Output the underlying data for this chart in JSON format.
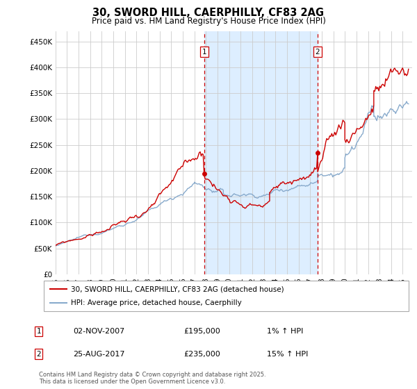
{
  "title": "30, SWORD HILL, CAERPHILLY, CF83 2AG",
  "subtitle": "Price paid vs. HM Land Registry's House Price Index (HPI)",
  "ylabel_ticks": [
    "£0",
    "£50K",
    "£100K",
    "£150K",
    "£200K",
    "£250K",
    "£300K",
    "£350K",
    "£400K",
    "£450K"
  ],
  "ylim": [
    0,
    470000
  ],
  "xlim_start": 1995.0,
  "xlim_end": 2025.8,
  "sale1_date": 2007.84,
  "sale1_price": 195000,
  "sale2_date": 2017.65,
  "sale2_price": 235000,
  "shade_start": 2007.84,
  "shade_end": 2017.65,
  "shade_color": "#ddeeff",
  "vline_color": "#cc0000",
  "hpi_color": "#88aacc",
  "price_line_color": "#cc0000",
  "marker_color": "#cc0000",
  "bg_color": "#ffffff",
  "grid_color": "#cccccc",
  "legend1_label": "30, SWORD HILL, CAERPHILLY, CF83 2AG (detached house)",
  "legend2_label": "HPI: Average price, detached house, Caerphilly",
  "annotation1_label": "1",
  "annotation1_date": "02-NOV-2007",
  "annotation1_price": "£195,000",
  "annotation1_hpi": "1% ↑ HPI",
  "annotation2_label": "2",
  "annotation2_date": "25-AUG-2017",
  "annotation2_price": "£235,000",
  "annotation2_hpi": "15% ↑ HPI",
  "footer": "Contains HM Land Registry data © Crown copyright and database right 2025.\nThis data is licensed under the Open Government Licence v3.0.",
  "title_fontsize": 10.5,
  "subtitle_fontsize": 8.5,
  "tick_fontsize": 7.5,
  "legend_fontsize": 7.5,
  "annotation_fontsize": 8,
  "footer_fontsize": 6.0
}
